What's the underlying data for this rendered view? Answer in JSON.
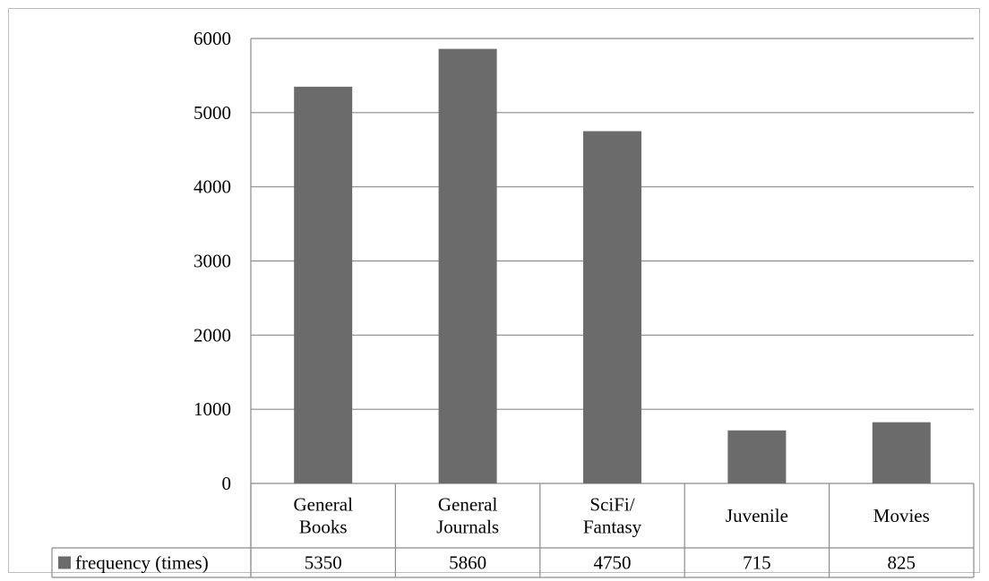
{
  "chart_data": {
    "type": "bar",
    "categories": [
      [
        "General",
        "Books"
      ],
      [
        "General",
        "Journals"
      ],
      [
        "SciFi/",
        "Fantasy"
      ],
      [
        "Juvenile"
      ],
      [
        "Movies"
      ]
    ],
    "series": [
      {
        "name": "frequency (times)",
        "values": [
          5350,
          5860,
          4750,
          715,
          825
        ],
        "color": "#6b6b6b"
      }
    ],
    "ylim": [
      0,
      6000
    ],
    "yticks": [
      0,
      1000,
      2000,
      3000,
      4000,
      5000,
      6000
    ],
    "grid": true,
    "legend": "data-table",
    "data_table": {
      "row_label": "frequency (times)",
      "values": [
        "5350",
        "5860",
        "4750",
        "715",
        "825"
      ]
    }
  },
  "colors": {
    "bar": "#6b6b6b",
    "grid": "#8c8c8c",
    "frame": "#bdbdbd"
  }
}
